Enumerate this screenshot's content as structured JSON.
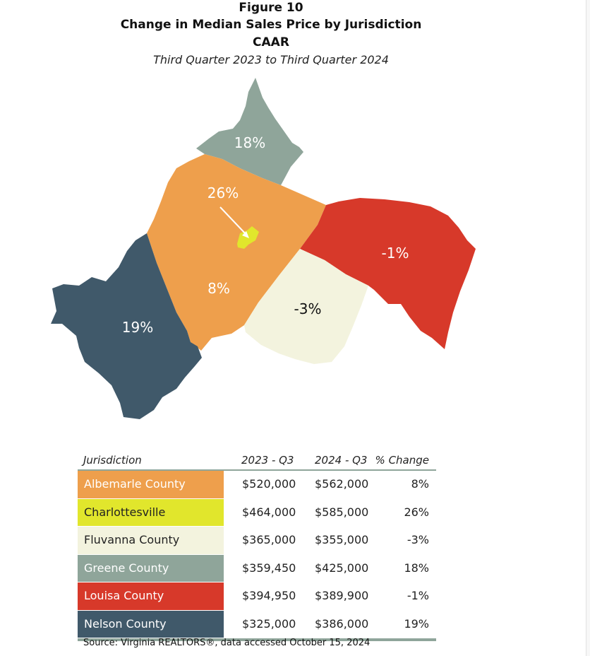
{
  "figure": {
    "number": "Figure 10",
    "title": "Change in Median Sales Price by Jurisdiction",
    "organization": "CAAR",
    "subtitle": "Third Quarter 2023 to Third Quarter 2024"
  },
  "map": {
    "labels": {
      "greene": "18%",
      "charlottesville": "26%",
      "albemarle": "8%",
      "louisa": "-1%",
      "fluvanna": "-3%",
      "nelson": "19%"
    },
    "colors": {
      "albemarle": "#ee9f4c",
      "charlottesville": "#e1e62c",
      "fluvanna": "#f3f3de",
      "greene": "#8fa59a",
      "louisa": "#d7392a",
      "nelson": "#40596a"
    }
  },
  "table": {
    "headers": [
      "Jurisdiction",
      "2023 - Q3",
      "2024 - Q3",
      "% Change"
    ],
    "rows": [
      {
        "name": "Albemarle County",
        "q3_2023": "$520,000",
        "q3_2024": "$562,000",
        "change": "8%",
        "color": "#ee9f4c",
        "text_color": "#ffffff"
      },
      {
        "name": "Charlottesville",
        "q3_2023": "$464,000",
        "q3_2024": "$585,000",
        "change": "26%",
        "color": "#e1e62c",
        "text_color": "#222222"
      },
      {
        "name": "Fluvanna County",
        "q3_2023": "$365,000",
        "q3_2024": "$355,000",
        "change": "-3%",
        "color": "#f3f3de",
        "text_color": "#222222"
      },
      {
        "name": "Greene County",
        "q3_2023": "$359,450",
        "q3_2024": "$425,000",
        "change": "18%",
        "color": "#8fa59a",
        "text_color": "#ffffff"
      },
      {
        "name": "Louisa County",
        "q3_2023": "$394,950",
        "q3_2024": "$389,900",
        "change": "-1%",
        "color": "#d7392a",
        "text_color": "#ffffff"
      },
      {
        "name": "Nelson County",
        "q3_2023": "$325,000",
        "q3_2024": "$386,000",
        "change": "19%",
        "color": "#40596a",
        "text_color": "#ffffff"
      }
    ]
  },
  "source": "Source: Virginia REALTORS®, data accessed October 15, 2024"
}
